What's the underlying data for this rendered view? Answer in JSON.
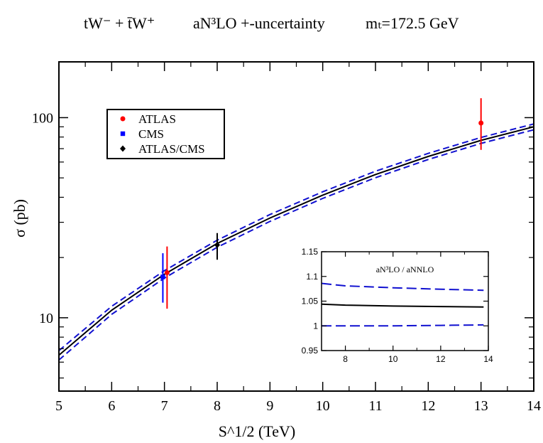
{
  "chart_data": [
    {
      "type": "line",
      "title": {
        "process": "tW⁻ + t̄W⁺",
        "order": "aN³LO +-uncertainty",
        "mass": "mₜ=172.5 GeV"
      },
      "xlabel": "S^1/2 (TeV)",
      "ylabel": "σ (pb)",
      "xlim": [
        5,
        14
      ],
      "ylim": [
        4.3,
        190
      ],
      "y_scale": "log",
      "grid": false,
      "legend_position": "top-left",
      "x_ticks": [
        "5",
        "6",
        "7",
        "8",
        "9",
        "10",
        "11",
        "12",
        "13",
        "14"
      ],
      "y_ticks": [
        "10",
        "100"
      ],
      "series": [
        {
          "kind": "central",
          "color": "#000000",
          "dashed": false,
          "x": [
            5,
            6,
            7,
            8,
            9,
            10,
            11,
            12,
            13,
            14
          ],
          "values": [
            6.5,
            10.9,
            16.5,
            23.5,
            31.5,
            41.0,
            52.0,
            64.0,
            77.0,
            90.0
          ]
        },
        {
          "kind": "upper",
          "color": "#1010d0",
          "dashed": true,
          "x": [
            5,
            6,
            7,
            8,
            9,
            10,
            11,
            12,
            13,
            14
          ],
          "values": [
            6.85,
            11.4,
            17.2,
            24.4,
            32.8,
            42.6,
            54.0,
            66.3,
            79.6,
            93.0
          ]
        },
        {
          "kind": "lower",
          "color": "#1010d0",
          "dashed": true,
          "x": [
            5,
            6,
            7,
            8,
            9,
            10,
            11,
            12,
            13,
            14
          ],
          "values": [
            6.15,
            10.4,
            15.8,
            22.5,
            30.3,
            39.5,
            50.1,
            61.8,
            74.4,
            87.0
          ]
        }
      ],
      "points": [
        {
          "name": "ATLAS",
          "color": "#ff0000",
          "marker": "circle",
          "x": 7.05,
          "y": 16.8,
          "y_low": 11.1,
          "y_high": 22.7
        },
        {
          "name": "CMS",
          "color": "#0000ff",
          "marker": "square",
          "x": 6.97,
          "y": 16.0,
          "y_low": 11.9,
          "y_high": 21.0
        },
        {
          "name": "ATLAS/CMS",
          "color": "#000000",
          "marker": "diamond",
          "x": 8.0,
          "y": 23.1,
          "y_low": 19.5,
          "y_high": 26.5
        },
        {
          "name": "ATLAS",
          "color": "#ff0000",
          "marker": "circle",
          "x": 13.0,
          "y": 94.0,
          "y_low": 69.0,
          "y_high": 125.0
        }
      ],
      "legend": [
        {
          "label": "ATLAS",
          "color": "#ff0000",
          "marker": "circle"
        },
        {
          "label": "CMS",
          "color": "#0000ff",
          "marker": "square"
        },
        {
          "label": "ATLAS/CMS",
          "color": "#000000",
          "marker": "diamond"
        }
      ]
    },
    {
      "type": "line",
      "title": "aN³LO / aNNLO",
      "xlim": [
        7,
        14
      ],
      "ylim": [
        0.95,
        1.15
      ],
      "x_ticks": [
        "8",
        "10",
        "12",
        "14"
      ],
      "y_ticks": [
        "0.95",
        "1",
        "1.05",
        "1.1",
        "1.15"
      ],
      "grid": false,
      "series": [
        {
          "kind": "central",
          "color": "#000000",
          "dashed": false,
          "x": [
            7,
            8,
            10,
            12,
            13.8
          ],
          "values": [
            1.044,
            1.042,
            1.04,
            1.039,
            1.038
          ]
        },
        {
          "kind": "upper",
          "color": "#1010d0",
          "dashed": true,
          "x": [
            7,
            8,
            10,
            12,
            13.8
          ],
          "values": [
            1.086,
            1.081,
            1.077,
            1.074,
            1.072
          ]
        },
        {
          "kind": "lower",
          "color": "#1010d0",
          "dashed": true,
          "x": [
            7,
            8,
            10,
            12,
            13.8
          ],
          "values": [
            1.0,
            1.0,
            1.0,
            1.001,
            1.002
          ]
        }
      ]
    }
  ]
}
